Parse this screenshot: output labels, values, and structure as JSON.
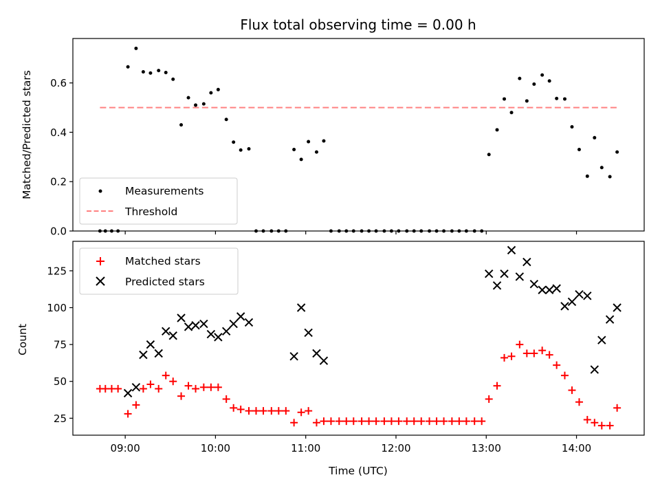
{
  "chart_data": {
    "title": "Flux total observing time = 0.00 h",
    "type": "scatter",
    "xlabel": "Time (UTC)",
    "x_unit": "hours (UTC)",
    "xlim": [
      8.42,
      14.75
    ],
    "xticks": [
      9,
      10,
      11,
      12,
      13,
      14
    ],
    "xtick_labels": [
      "09:00",
      "10:00",
      "11:00",
      "12:00",
      "13:00",
      "14:00"
    ],
    "panels": [
      {
        "ylabel": "Matched/Predicted stars",
        "ylim": [
          0,
          0.78
        ],
        "yticks": [
          0.0,
          0.2,
          0.4,
          0.6
        ],
        "ytick_labels": [
          "0.0",
          "0.2",
          "0.4",
          "0.6"
        ],
        "legend_position": "lower-left",
        "series": [
          {
            "name": "Measurements",
            "type": "scatter",
            "marker": "dot",
            "color": "#000000",
            "points": [
              [
                8.72,
                0
              ],
              [
                8.78,
                0
              ],
              [
                8.85,
                0
              ],
              [
                8.92,
                0
              ],
              [
                9.03,
                0.665
              ],
              [
                9.12,
                0.74
              ],
              [
                9.2,
                0.645
              ],
              [
                9.28,
                0.64
              ],
              [
                9.37,
                0.65
              ],
              [
                9.45,
                0.642
              ],
              [
                9.53,
                0.615
              ],
              [
                9.62,
                0.43
              ],
              [
                9.7,
                0.54
              ],
              [
                9.78,
                0.51
              ],
              [
                9.87,
                0.515
              ],
              [
                9.95,
                0.56
              ],
              [
                10.03,
                0.573
              ],
              [
                10.12,
                0.452
              ],
              [
                10.2,
                0.36
              ],
              [
                10.28,
                0.328
              ],
              [
                10.37,
                0.333
              ],
              [
                10.45,
                0
              ],
              [
                10.53,
                0
              ],
              [
                10.62,
                0
              ],
              [
                10.7,
                0
              ],
              [
                10.78,
                0
              ],
              [
                10.87,
                0.33
              ],
              [
                10.95,
                0.29
              ],
              [
                11.03,
                0.362
              ],
              [
                11.12,
                0.32
              ],
              [
                11.2,
                0.365
              ],
              [
                11.28,
                0
              ],
              [
                11.37,
                0
              ],
              [
                11.45,
                0
              ],
              [
                11.53,
                0
              ],
              [
                11.62,
                0
              ],
              [
                11.7,
                0
              ],
              [
                11.78,
                0
              ],
              [
                11.87,
                0
              ],
              [
                11.95,
                0
              ],
              [
                12.03,
                0
              ],
              [
                12.12,
                0
              ],
              [
                12.2,
                0
              ],
              [
                12.28,
                0
              ],
              [
                12.37,
                0
              ],
              [
                12.45,
                0
              ],
              [
                12.53,
                0
              ],
              [
                12.62,
                0
              ],
              [
                12.7,
                0
              ],
              [
                12.78,
                0
              ],
              [
                12.87,
                0
              ],
              [
                12.95,
                0
              ],
              [
                13.03,
                0.31
              ],
              [
                13.12,
                0.41
              ],
              [
                13.2,
                0.535
              ],
              [
                13.28,
                0.48
              ],
              [
                13.37,
                0.618
              ],
              [
                13.45,
                0.527
              ],
              [
                13.53,
                0.595
              ],
              [
                13.62,
                0.632
              ],
              [
                13.7,
                0.608
              ],
              [
                13.78,
                0.537
              ],
              [
                13.87,
                0.535
              ],
              [
                13.95,
                0.422
              ],
              [
                14.03,
                0.33
              ],
              [
                14.12,
                0.222
              ],
              [
                14.2,
                0.378
              ],
              [
                14.28,
                0.257
              ],
              [
                14.37,
                0.22
              ],
              [
                14.45,
                0.32
              ]
            ]
          },
          {
            "name": "Threshold",
            "type": "line",
            "style": "dashed",
            "color": "#ff8080",
            "x": [
              8.72,
              14.45
            ],
            "y": [
              0.5,
              0.5
            ]
          }
        ]
      },
      {
        "ylabel": "Count",
        "ylim": [
          13.5,
          145
        ],
        "yticks": [
          25,
          50,
          75,
          100,
          125
        ],
        "ytick_labels": [
          "25",
          "50",
          "75",
          "100",
          "125"
        ],
        "legend_position": "upper-left",
        "series": [
          {
            "name": "Matched stars",
            "type": "scatter",
            "marker": "plus",
            "color": "#ff0000",
            "points": [
              [
                8.72,
                45
              ],
              [
                8.78,
                45
              ],
              [
                8.85,
                45
              ],
              [
                8.92,
                45
              ],
              [
                9.03,
                28
              ],
              [
                9.12,
                34
              ],
              [
                9.2,
                45
              ],
              [
                9.28,
                48
              ],
              [
                9.37,
                45
              ],
              [
                9.45,
                54
              ],
              [
                9.53,
                50
              ],
              [
                9.62,
                40
              ],
              [
                9.7,
                47
              ],
              [
                9.78,
                45
              ],
              [
                9.87,
                46
              ],
              [
                9.95,
                46
              ],
              [
                10.03,
                46
              ],
              [
                10.12,
                38
              ],
              [
                10.2,
                32
              ],
              [
                10.28,
                31
              ],
              [
                10.37,
                30
              ],
              [
                10.45,
                30
              ],
              [
                10.53,
                30
              ],
              [
                10.62,
                30
              ],
              [
                10.7,
                30
              ],
              [
                10.78,
                30
              ],
              [
                10.87,
                22
              ],
              [
                10.95,
                29
              ],
              [
                11.03,
                30
              ],
              [
                11.12,
                22
              ],
              [
                11.2,
                23
              ],
              [
                11.28,
                23
              ],
              [
                11.37,
                23
              ],
              [
                11.45,
                23
              ],
              [
                11.53,
                23
              ],
              [
                11.62,
                23
              ],
              [
                11.7,
                23
              ],
              [
                11.78,
                23
              ],
              [
                11.87,
                23
              ],
              [
                11.95,
                23
              ],
              [
                12.03,
                23
              ],
              [
                12.12,
                23
              ],
              [
                12.2,
                23
              ],
              [
                12.28,
                23
              ],
              [
                12.37,
                23
              ],
              [
                12.45,
                23
              ],
              [
                12.53,
                23
              ],
              [
                12.62,
                23
              ],
              [
                12.7,
                23
              ],
              [
                12.78,
                23
              ],
              [
                12.87,
                23
              ],
              [
                12.95,
                23
              ],
              [
                13.03,
                38
              ],
              [
                13.12,
                47
              ],
              [
                13.2,
                66
              ],
              [
                13.28,
                67
              ],
              [
                13.37,
                75
              ],
              [
                13.45,
                69
              ],
              [
                13.53,
                69
              ],
              [
                13.62,
                71
              ],
              [
                13.7,
                68
              ],
              [
                13.78,
                61
              ],
              [
                13.87,
                54
              ],
              [
                13.95,
                44
              ],
              [
                14.03,
                36
              ],
              [
                14.12,
                24
              ],
              [
                14.2,
                22
              ],
              [
                14.28,
                20
              ],
              [
                14.37,
                20
              ],
              [
                14.45,
                32
              ]
            ]
          },
          {
            "name": "Predicted stars",
            "type": "scatter",
            "marker": "x",
            "color": "#000000",
            "points": [
              [
                9.03,
                42
              ],
              [
                9.12,
                46
              ],
              [
                9.2,
                68
              ],
              [
                9.28,
                75
              ],
              [
                9.37,
                69
              ],
              [
                9.45,
                84
              ],
              [
                9.53,
                81
              ],
              [
                9.62,
                93
              ],
              [
                9.7,
                87
              ],
              [
                9.78,
                88
              ],
              [
                9.87,
                89
              ],
              [
                9.95,
                82
              ],
              [
                10.03,
                80
              ],
              [
                10.12,
                84
              ],
              [
                10.2,
                89
              ],
              [
                10.28,
                94
              ],
              [
                10.37,
                90
              ],
              [
                10.87,
                67
              ],
              [
                10.95,
                100
              ],
              [
                11.03,
                83
              ],
              [
                11.12,
                69
              ],
              [
                11.2,
                64
              ],
              [
                13.03,
                123
              ],
              [
                13.12,
                115
              ],
              [
                13.2,
                123
              ],
              [
                13.28,
                139
              ],
              [
                13.37,
                121
              ],
              [
                13.45,
                131
              ],
              [
                13.53,
                116
              ],
              [
                13.62,
                112
              ],
              [
                13.7,
                112
              ],
              [
                13.78,
                113
              ],
              [
                13.87,
                101
              ],
              [
                13.95,
                104
              ],
              [
                14.03,
                109
              ],
              [
                14.12,
                108
              ],
              [
                14.2,
                58
              ],
              [
                14.28,
                78
              ],
              [
                14.37,
                92
              ],
              [
                14.45,
                100
              ]
            ]
          }
        ]
      }
    ]
  }
}
